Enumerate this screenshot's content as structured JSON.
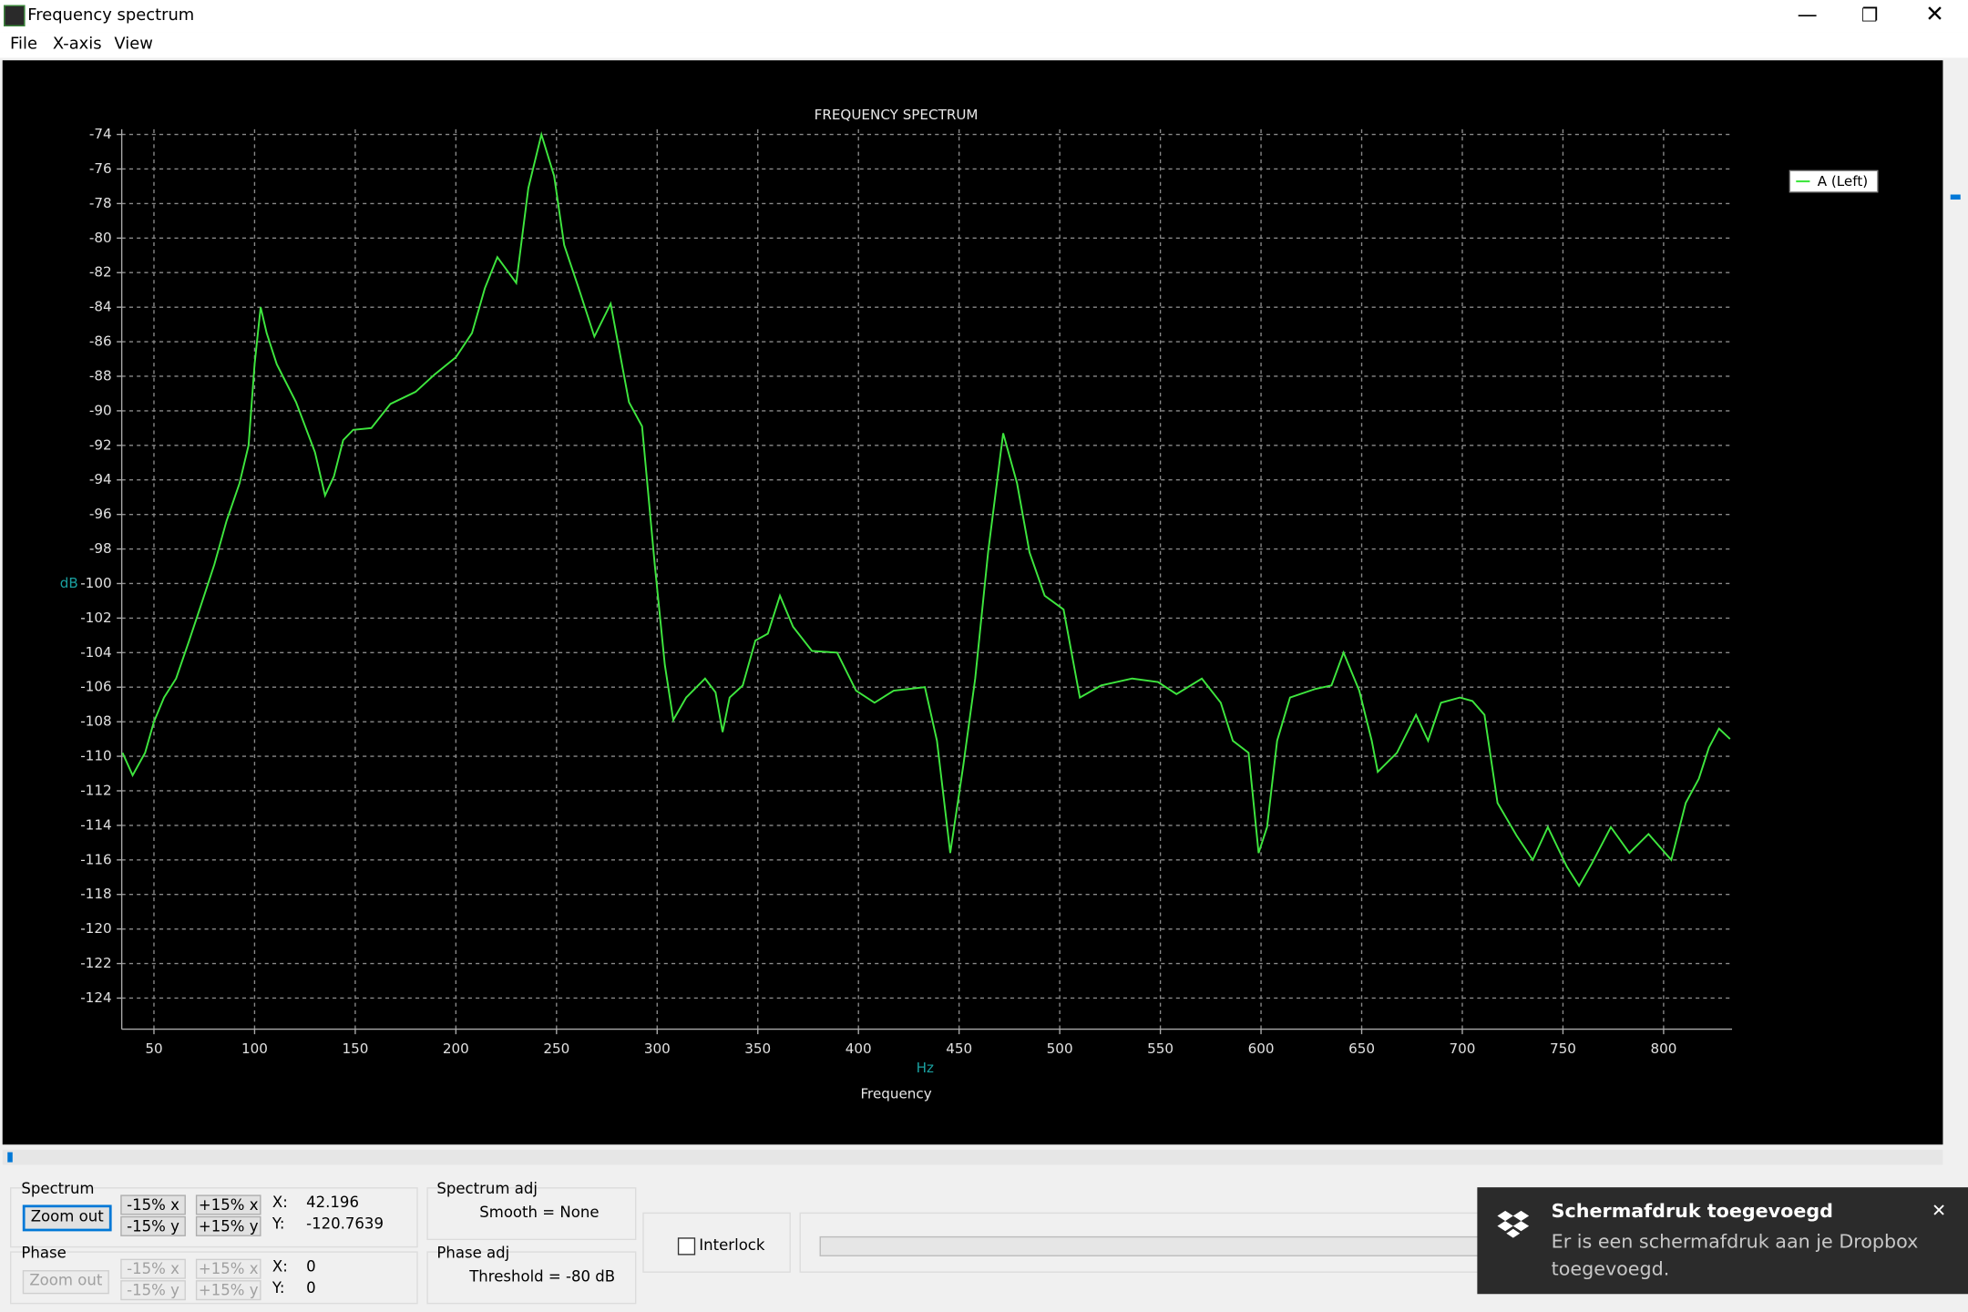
{
  "window": {
    "title": "Frequency spectrum",
    "menu": [
      "File",
      "X-axis",
      "View"
    ]
  },
  "chart_data": {
    "type": "line",
    "title": "FREQUENCY SPECTRUM",
    "y_label": "dB",
    "x_unit": "Hz",
    "x_label": "Frequency",
    "x": [
      34.4,
      39.4,
      45.6,
      50,
      55,
      61,
      67.5,
      73.8,
      80,
      86,
      92.5,
      97,
      100,
      103,
      106,
      111,
      120.6,
      130,
      135,
      139.4,
      144,
      149,
      158,
      167.5,
      180,
      189.4,
      200,
      208,
      214.4,
      220.6,
      230,
      236,
      242.5,
      248.8,
      253.8,
      261,
      268.8,
      276.9,
      286,
      292.5,
      298.8,
      303.8,
      308,
      314.4,
      323.8,
      329,
      332.5,
      336,
      342.5,
      348.8,
      355,
      361,
      367.5,
      376.9,
      389.4,
      398.8,
      408,
      417.5,
      433,
      439,
      445.6,
      452,
      458,
      464.4,
      471.9,
      478.8,
      485,
      492.5,
      501.9,
      510,
      520.6,
      536,
      548.8,
      558,
      570.6,
      580,
      586,
      593.8,
      598.8,
      603,
      608,
      614.4,
      627,
      635,
      641,
      648.8,
      655,
      658,
      667.5,
      677,
      683,
      689.4,
      698.8,
      705,
      711,
      717.5,
      727,
      735,
      742.5,
      752,
      758,
      764.4,
      773.8,
      783,
      792.5,
      803.8,
      811,
      817.5,
      822.5,
      827.5,
      833
    ],
    "series": [
      {
        "name": "A (Left)",
        "color": "#3ee63e",
        "values": [
          -109.8,
          -111.1,
          -109.8,
          -108,
          -106.6,
          -105.5,
          -103.3,
          -101.1,
          -98.9,
          -96.4,
          -94.2,
          -92,
          -87.3,
          -84,
          -85.5,
          -87.3,
          -89.5,
          -92.4,
          -94.9,
          -93.8,
          -91.7,
          -91.1,
          -91,
          -89.6,
          -88.9,
          -87.9,
          -86.9,
          -85.5,
          -82.9,
          -81.1,
          -82.6,
          -77.1,
          -74,
          -76.4,
          -80.4,
          -82.9,
          -85.7,
          -83.8,
          -89.5,
          -90.9,
          -98.9,
          -104.7,
          -107.9,
          -106.6,
          -105.5,
          -106.3,
          -108.6,
          -106.6,
          -105.9,
          -103.3,
          -102.9,
          -100.7,
          -102.5,
          -103.9,
          -104,
          -106.2,
          -106.9,
          -106.2,
          -106,
          -109.1,
          -115.6,
          -110.6,
          -105.5,
          -98.2,
          -91.3,
          -94.2,
          -98.2,
          -100.7,
          -101.5,
          -106.6,
          -105.9,
          -105.5,
          -105.7,
          -106.4,
          -105.5,
          -106.9,
          -109.1,
          -109.8,
          -115.6,
          -114.1,
          -109.1,
          -106.6,
          -106.1,
          -105.9,
          -104,
          -106.2,
          -109.1,
          -110.9,
          -109.8,
          -107.6,
          -109.1,
          -106.9,
          -106.6,
          -106.8,
          -107.6,
          -112.7,
          -114.6,
          -116,
          -114.1,
          -116.4,
          -117.5,
          -116.2,
          -114.1,
          -115.6,
          -114.5,
          -116,
          -112.7,
          -111.3,
          -109.5,
          -108.4,
          -109
        ]
      }
    ],
    "xlim": [
      34,
      834
    ],
    "ylim": [
      -125.8,
      -73.7
    ],
    "xticks": [
      50,
      100,
      150,
      200,
      250,
      300,
      350,
      400,
      450,
      500,
      550,
      600,
      650,
      700,
      750,
      800
    ],
    "yticks": [
      -124,
      -122,
      -120,
      -118,
      -116,
      -114,
      -112,
      -110,
      -108,
      -106,
      -104,
      -102,
      -100,
      -98,
      -96,
      -94,
      -92,
      -90,
      -88,
      -86,
      -84,
      -82,
      -80,
      -78,
      -76,
      -74
    ],
    "grid": true,
    "legend": "upper right"
  },
  "controls": {
    "spectrum": {
      "label": "Spectrum",
      "zoom": "Zoom out",
      "buttons": [
        "-15% x",
        "+15% x",
        "-15% y",
        "+15% y"
      ],
      "x_label": "X:",
      "x_value": "42.196",
      "y_label": "Y:",
      "y_value": "-120.7639"
    },
    "phase": {
      "label": "Phase",
      "zoom": "Zoom out",
      "buttons": [
        "-15% x",
        "+15% x",
        "-15% y",
        "+15% y"
      ],
      "x_label": "X:",
      "x_value": "0",
      "y_label": "Y:",
      "y_value": "0"
    },
    "spectrum_adj": {
      "label": "Spectrum adj",
      "text": "Smooth = None"
    },
    "phase_adj": {
      "label": "Phase adj",
      "text": "Threshold = -80 dB"
    },
    "interlock": "Interlock"
  },
  "notification": {
    "title": "Schermafdruk toegevoegd",
    "body": "Er is een schermafdruk aan je Dropbox toegevoegd."
  }
}
